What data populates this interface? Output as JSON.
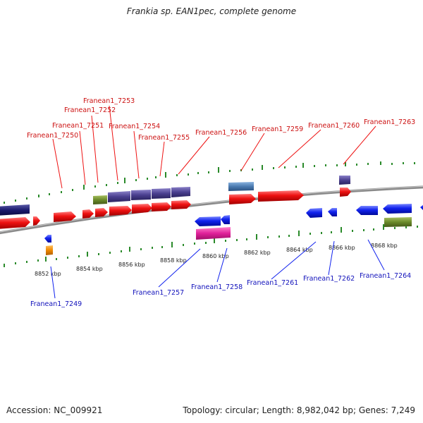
{
  "title": "Frankia sp. EAN1pec, complete genome",
  "footer": {
    "accession": "Accession: NC_009921",
    "topology": "Topology: circular; Length: 8,982,042 bp; Genes: 7,249"
  },
  "ticks": [
    "8852 kbp",
    "8854 kbp",
    "8856 kbp",
    "8858 kbp",
    "8860 kbp",
    "8862 kbp",
    "8864 kbp",
    "8866 kbp",
    "8868 kbp"
  ],
  "genes_top": [
    "Franean1_7250",
    "Franean1_7251",
    "Franean1_7252",
    "Franean1_7253",
    "Franean1_7254",
    "Franean1_7255",
    "Franean1_7256",
    "Franean1_7259",
    "Franean1_7260",
    "Franean1_7263"
  ],
  "genes_bottom": [
    "Franean1_7249",
    "Franean1_7257",
    "Franean1_7258",
    "Franean1_7261",
    "Franean1_7262",
    "Franean1_7264"
  ],
  "colors": {
    "forward_gene": "#ee1111",
    "reverse_gene": "#1122ee",
    "backbone": "#8a8a8a",
    "forward_label": "#cc1111",
    "reverse_label": "#1111bb",
    "tick": "#2a8a2a",
    "navy": "#1a1a6e",
    "purple": "#4a3f8f",
    "olive": "#6b8a2a",
    "steel": "#4a7ab0",
    "magenta": "#e0209a",
    "orange": "#ee8800"
  }
}
